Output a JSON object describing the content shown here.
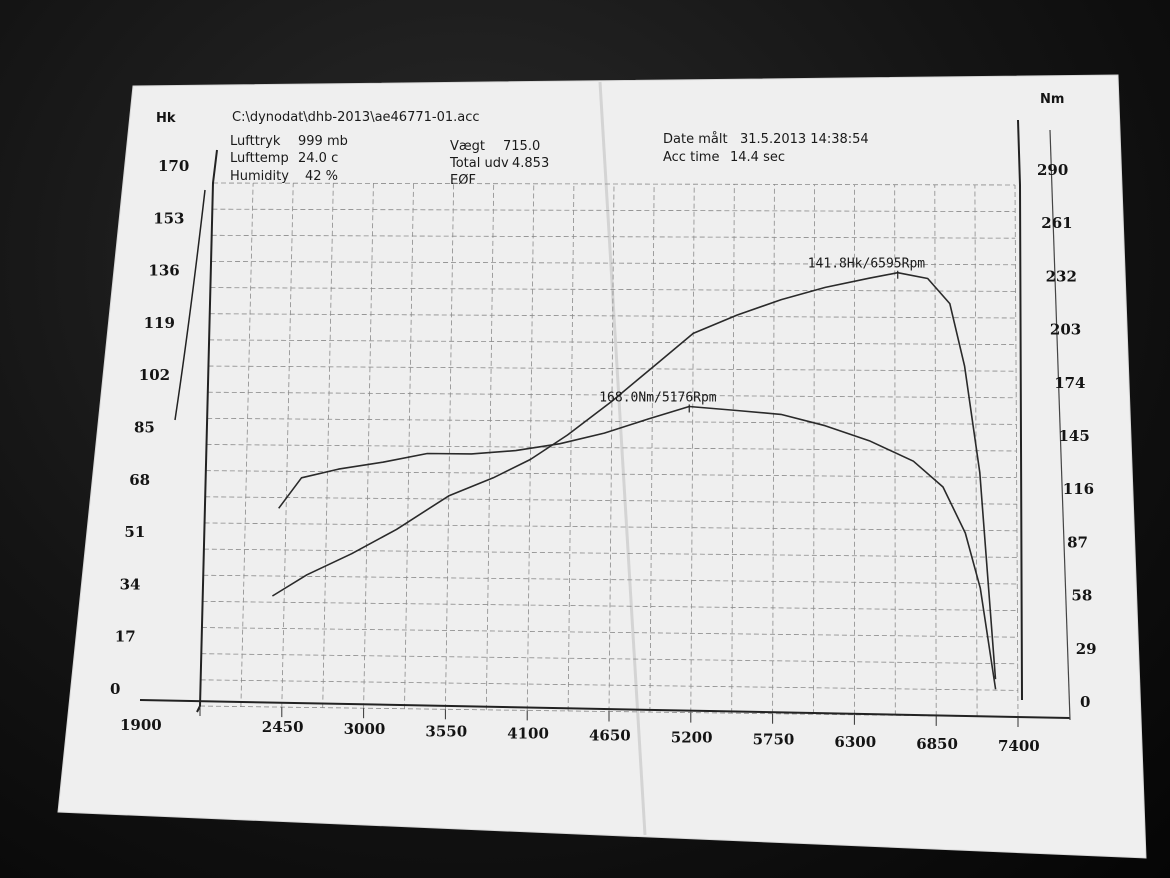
{
  "header": {
    "file_path": "C:\\dynodat\\dhb-2013\\ae46771-01.acc",
    "lufttryk_label": "Lufttryk",
    "lufttryk_value": "999 mb",
    "lufttemp_label": "Lufttemp",
    "lufttemp_value": "24.0 c",
    "humidity_label": "Humidity",
    "humidity_value": "42 %",
    "vaegt_label": "Vægt",
    "vaegt_value": "715.0",
    "total_udv_label": "Total udv",
    "total_udv_value": "4.853",
    "eof_label": "EØF",
    "date_label": "Date målt",
    "date_value": "31.5.2013 14:38:54",
    "acc_label": "Acc time",
    "acc_value": "14.4 sec"
  },
  "chart_data": {
    "type": "line",
    "title": "",
    "xlabel": "",
    "x_ticks": [
      "1900",
      "2450",
      "3000",
      "3550",
      "4100",
      "4650",
      "5200",
      "5750",
      "6300",
      "6850",
      "7400"
    ],
    "xlim": [
      1900,
      7400
    ],
    "y_left": {
      "label": "Hk",
      "ticks": [
        "0",
        "17",
        "34",
        "51",
        "68",
        "85",
        "102",
        "119",
        "136",
        "153",
        "170"
      ],
      "ylim": [
        0,
        170
      ]
    },
    "y_right": {
      "label": "Nm",
      "ticks": [
        "0",
        "29",
        "58",
        "87",
        "116",
        "145",
        "174",
        "203",
        "232",
        "261",
        "290"
      ],
      "ylim": [
        0,
        290
      ]
    },
    "grid": true,
    "series": [
      {
        "name": "Hk",
        "axis": "left",
        "color": "#2a2a2a",
        "x": [
          2370,
          2600,
          2900,
          3200,
          3550,
          3850,
          4100,
          4350,
          4650,
          4950,
          5200,
          5500,
          5800,
          6100,
          6400,
          6595,
          6800,
          6950,
          7050,
          7150,
          7250
        ],
        "y": [
          36,
          43,
          50,
          58,
          69,
          75,
          81,
          89,
          100,
          112,
          122,
          128,
          133,
          137,
          140,
          141.8,
          140,
          132,
          112,
          78,
          12
        ]
      },
      {
        "name": "Nm",
        "axis": "right",
        "color": "#2a2a2a",
        "x": [
          2400,
          2550,
          2800,
          3100,
          3400,
          3700,
          4000,
          4300,
          4600,
          4900,
          5176,
          5500,
          5800,
          6100,
          6400,
          6700,
          6900,
          7050,
          7150,
          7250
        ],
        "y": [
          110,
          127,
          132,
          136,
          141,
          141,
          143,
          147,
          153,
          161,
          168,
          166,
          164,
          158,
          150,
          139,
          125,
          100,
          70,
          15
        ]
      }
    ],
    "annotations": [
      {
        "text": "141.8Hk/6595Rpm",
        "x": 6595,
        "axis": "left",
        "y": 141.8
      },
      {
        "text": "168.0Nm/5176Rpm",
        "x": 5176,
        "axis": "right",
        "y": 168.0
      }
    ]
  }
}
